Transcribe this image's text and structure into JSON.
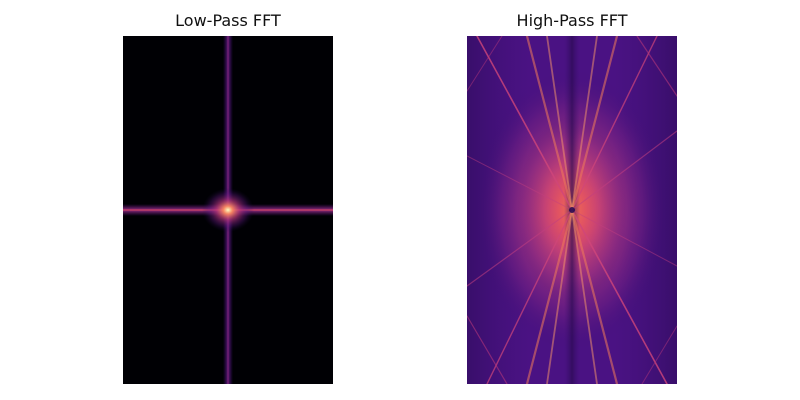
{
  "figure": {
    "panels": [
      {
        "title": "Low-Pass FFT",
        "colormap": "magma",
        "colors": {
          "background": "#000004",
          "dark": "#1b0c41",
          "mid": "#5d177f",
          "bright": "#b5367a",
          "hot": "#fb8761",
          "peak": "#fcfdbf"
        }
      },
      {
        "title": "High-Pass FFT",
        "colormap": "magma",
        "colors": {
          "background": "#3b0f70",
          "mid": "#7a1f8c",
          "bright": "#c33f7f",
          "hot": "#f3704f",
          "peak": "#fca76b"
        }
      }
    ]
  }
}
